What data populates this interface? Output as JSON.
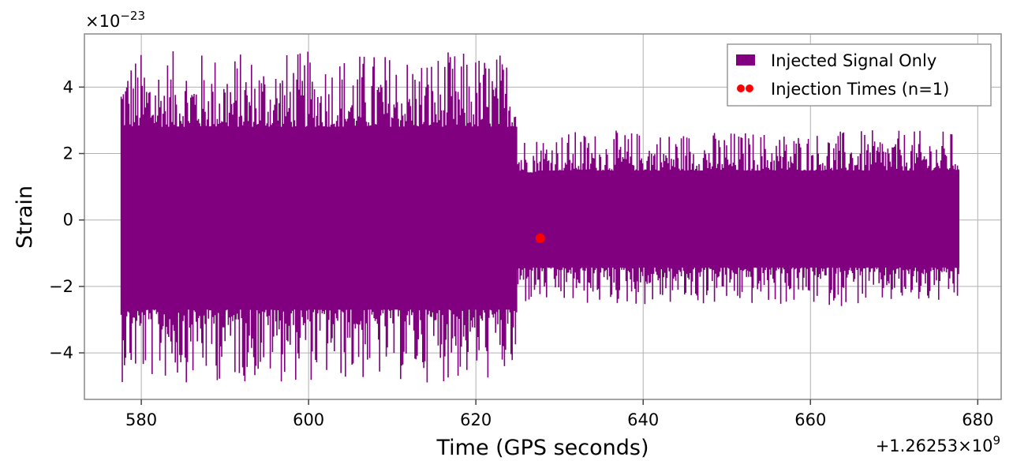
{
  "chart_data": {
    "type": "line",
    "xlabel": "Time (GPS seconds)",
    "ylabel": "Strain",
    "x_offset_text": {
      "prefix": "+1.26253×10",
      "exponent": "9"
    },
    "y_scale_text": {
      "prefix": "×10",
      "exponent": "−23"
    },
    "xlim": [
      573.2,
      682.8
    ],
    "ylim": [
      -5.4,
      5.6
    ],
    "xticks": [
      {
        "value": 580,
        "label": "580"
      },
      {
        "value": 600,
        "label": "600"
      },
      {
        "value": 620,
        "label": "620"
      },
      {
        "value": 640,
        "label": "640"
      },
      {
        "value": 660,
        "label": "660"
      },
      {
        "value": 680,
        "label": "680"
      }
    ],
    "yticks": [
      {
        "value": -4,
        "label": "−4"
      },
      {
        "value": -2,
        "label": "−2"
      },
      {
        "value": 0,
        "label": "0"
      },
      {
        "value": 2,
        "label": "2"
      },
      {
        "value": 4,
        "label": "4"
      }
    ],
    "grid": true,
    "legend_position": "top-right",
    "series": [
      {
        "name": "Injected Signal Only",
        "color": "#800080",
        "kind": "dense-oscillation",
        "segments": [
          {
            "x_start": 577.6,
            "x_end": 624.9,
            "envelope_max": 5.1,
            "envelope_min": -4.9
          },
          {
            "x_start": 624.9,
            "x_end": 627.4,
            "envelope_max": 2.6,
            "envelope_min": -2.6
          },
          {
            "x_start": 627.4,
            "x_end": 677.8,
            "envelope_max": 2.7,
            "envelope_min": -2.6
          }
        ]
      },
      {
        "name": "Injection Times (n=1)",
        "color": "#ff0000",
        "kind": "marker",
        "points": [
          {
            "x": 627.7,
            "y": -0.55
          }
        ]
      }
    ]
  }
}
